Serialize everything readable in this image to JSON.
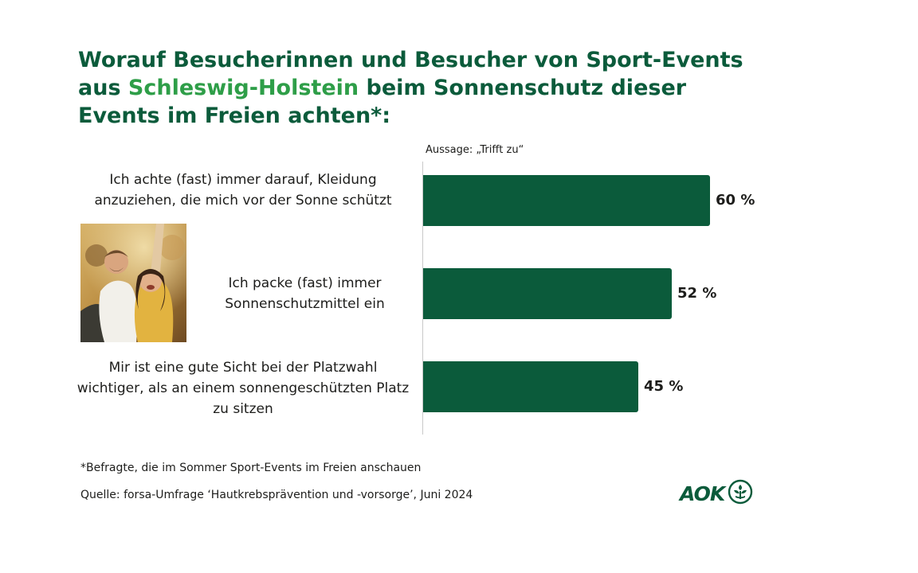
{
  "title": {
    "line1": "Worauf Besucherinnen und Besucher von Sport-Events",
    "line2_prefix": "aus ",
    "line2_highlight": "Schleswig-Holstein",
    "line2_suffix": " beim Sonnenschutz dieser",
    "line3": "Events im Freien achten*:"
  },
  "colors": {
    "bar": "#0b5b3b",
    "title": "#0b5b3b",
    "highlight": "#2e9e48"
  },
  "chart_data": {
    "type": "bar",
    "orientation": "horizontal",
    "statement_label": "Aussage: „Trifft zu“",
    "unit": "%",
    "xlim": [
      0,
      100
    ],
    "categories": [
      "Ich achte (fast) immer darauf, Kleidung anzuziehen, die mich vor der Sonne schützt",
      "Ich packe (fast) immer Sonnenschutzmittel ein",
      "Mir ist eine gute Sicht bei der Platzwahl wichtiger, als an einem sonnengeschützten Platz zu sitzen"
    ],
    "values": [
      60,
      52,
      45
    ],
    "value_labels": [
      "60 %",
      "52 %",
      "45 %"
    ]
  },
  "footnote": "*Befragte, die im Sommer Sport-Events im Freien anschauen",
  "source": "Quelle: forsa-Umfrage ‘Hautkrebsprävention und -vorsorge’, Juni 2024",
  "logo": {
    "text": "AOK",
    "icon": "aok-tree-icon"
  },
  "photo": {
    "icon": "cheering-fans-photo"
  }
}
